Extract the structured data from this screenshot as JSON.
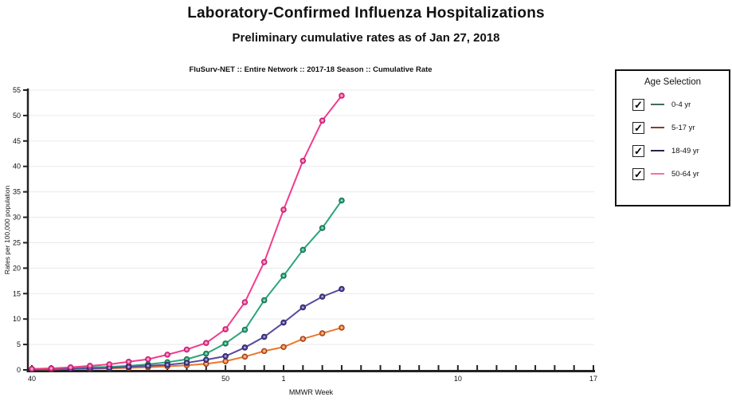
{
  "page": {
    "title": "Laboratory-Confirmed Influenza Hospitalizations",
    "subtitle": "Preliminary cumulative rates as of Jan 27, 2018"
  },
  "chart_data": {
    "type": "line",
    "title": "FluSurv-NET :: Entire Network :: 2017-18 Season :: Cumulative Rate",
    "xlabel": "MMWR Week",
    "ylabel": "Rates per 100,000 population",
    "ylim": [
      0,
      55
    ],
    "yticks": [
      0,
      5,
      10,
      15,
      20,
      25,
      30,
      35,
      40,
      45,
      50,
      55
    ],
    "grid": "horizontal-only",
    "legend_position": "outside-right",
    "x_categories": [
      "40",
      "41",
      "42",
      "43",
      "44",
      "45",
      "46",
      "47",
      "48",
      "49",
      "50",
      "51",
      "52",
      "1",
      "2",
      "3",
      "4",
      "5",
      "6",
      "7",
      "8",
      "9",
      "10",
      "11",
      "12",
      "13",
      "14",
      "15",
      "16",
      "17"
    ],
    "x_labeled_ticks": [
      {
        "label": "40",
        "index": 0
      },
      {
        "label": "50",
        "index": 10
      },
      {
        "label": "1",
        "index": 13
      },
      {
        "label": "10",
        "index": 22
      },
      {
        "label": "17",
        "index": 29
      }
    ],
    "series": [
      {
        "name": "0-4 yr",
        "line_color": "#2ba47a",
        "marker_fill": "#35b384",
        "marker_stroke": "#1a6b4d",
        "values": [
          0.2,
          0.3,
          0.4,
          0.5,
          0.6,
          0.8,
          1.1,
          1.5,
          2.1,
          3.2,
          5.2,
          7.9,
          13.7,
          18.5,
          23.6,
          27.9,
          33.3
        ]
      },
      {
        "name": "5-17 yr",
        "line_color": "#e9792f",
        "marker_fill": "#ef8a3c",
        "marker_stroke": "#9c3d1e",
        "values": [
          0.1,
          0.1,
          0.2,
          0.2,
          0.3,
          0.4,
          0.5,
          0.7,
          0.9,
          1.2,
          1.7,
          2.6,
          3.7,
          4.5,
          6.1,
          7.2,
          8.3
        ]
      },
      {
        "name": "18-49 yr",
        "line_color": "#584a9f",
        "marker_fill": "#6456ad",
        "marker_stroke": "#272360",
        "values": [
          0.1,
          0.2,
          0.2,
          0.3,
          0.4,
          0.6,
          0.8,
          1.0,
          1.4,
          2.0,
          2.7,
          4.4,
          6.5,
          9.3,
          12.3,
          14.4,
          15.9
        ]
      },
      {
        "name": "50-64 yr",
        "line_color": "#ef3e8d",
        "marker_fill": "#f566a4",
        "marker_stroke": "#c01371",
        "values": [
          0.2,
          0.3,
          0.5,
          0.8,
          1.1,
          1.6,
          2.1,
          3.0,
          4.0,
          5.3,
          8.0,
          13.3,
          21.2,
          31.5,
          41.1,
          49.0,
          53.9
        ]
      }
    ]
  },
  "legend": {
    "title": "Age Selection",
    "check_glyph": "✓",
    "items": [
      {
        "label": "0-4 yr",
        "checked": true,
        "swatch_color": "#3f6e5b"
      },
      {
        "label": "5-17 yr",
        "checked": true,
        "swatch_color": "#83402a"
      },
      {
        "label": "18-49 yr",
        "checked": true,
        "swatch_color": "#23254e"
      },
      {
        "label": "50-64 yr",
        "checked": true,
        "swatch_color": "#f76fad"
      }
    ]
  }
}
